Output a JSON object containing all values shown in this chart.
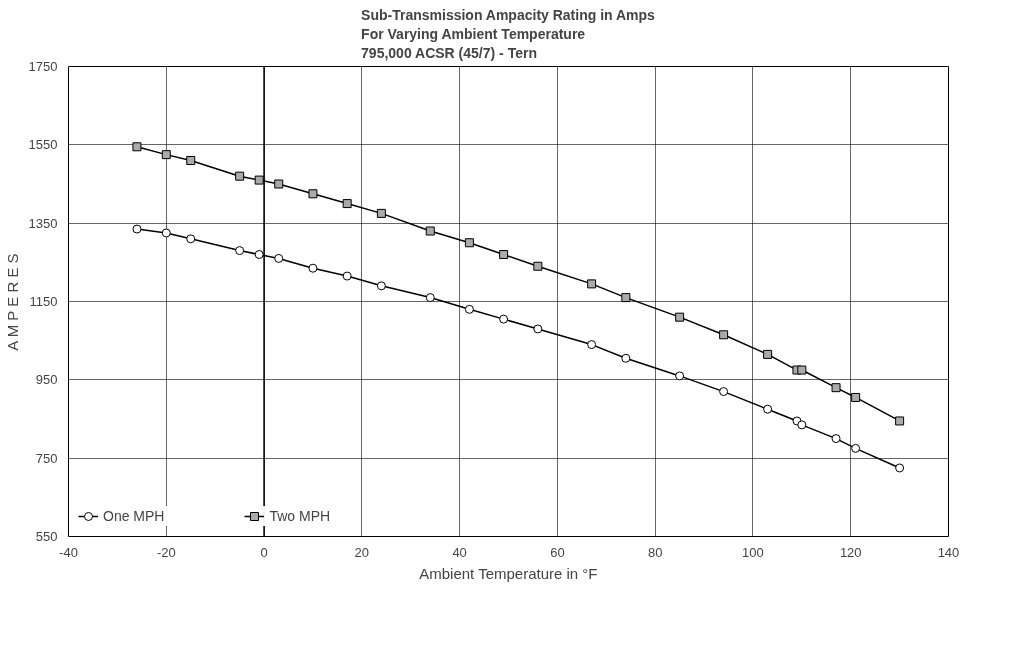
{
  "chart_data": {
    "type": "line",
    "title": "Sub-Transmission Ampacity Rating in Amps\nFor Varying Ambient Temperature\n795,000 ACSR (45/7) - Tern",
    "xlabel": "Ambient Temperature in °F",
    "ylabel": "A M P E R E S",
    "x": [
      -26,
      -20,
      -15,
      -5,
      -1,
      3,
      10,
      17,
      24,
      34,
      42,
      49,
      56,
      67,
      74,
      85,
      94,
      103,
      109,
      110,
      117,
      121,
      130
    ],
    "series": [
      {
        "name": "One MPH",
        "color": "#000000",
        "marker": "circle",
        "values": [
          1335,
          1325,
          1310,
          1280,
          1270,
          1260,
          1235,
          1215,
          1190,
          1160,
          1130,
          1105,
          1080,
          1040,
          1005,
          960,
          920,
          875,
          845,
          835,
          800,
          775,
          725
        ]
      },
      {
        "name": "Two MPH",
        "color": "#000000",
        "marker": "square",
        "values": [
          1545,
          1525,
          1510,
          1470,
          1460,
          1450,
          1425,
          1400,
          1375,
          1330,
          1300,
          1270,
          1240,
          1195,
          1160,
          1110,
          1065,
          1015,
          975,
          975,
          930,
          905,
          845
        ]
      }
    ],
    "xlim": [
      -40,
      140
    ],
    "xticks": [
      -40,
      -20,
      0,
      20,
      40,
      60,
      80,
      100,
      120,
      140
    ],
    "ylim": [
      550,
      1750
    ],
    "yticks": [
      550,
      750,
      950,
      1150,
      1350,
      1550,
      1750
    ],
    "grid": true,
    "legend": "bottom left",
    "line_style": "solid"
  }
}
